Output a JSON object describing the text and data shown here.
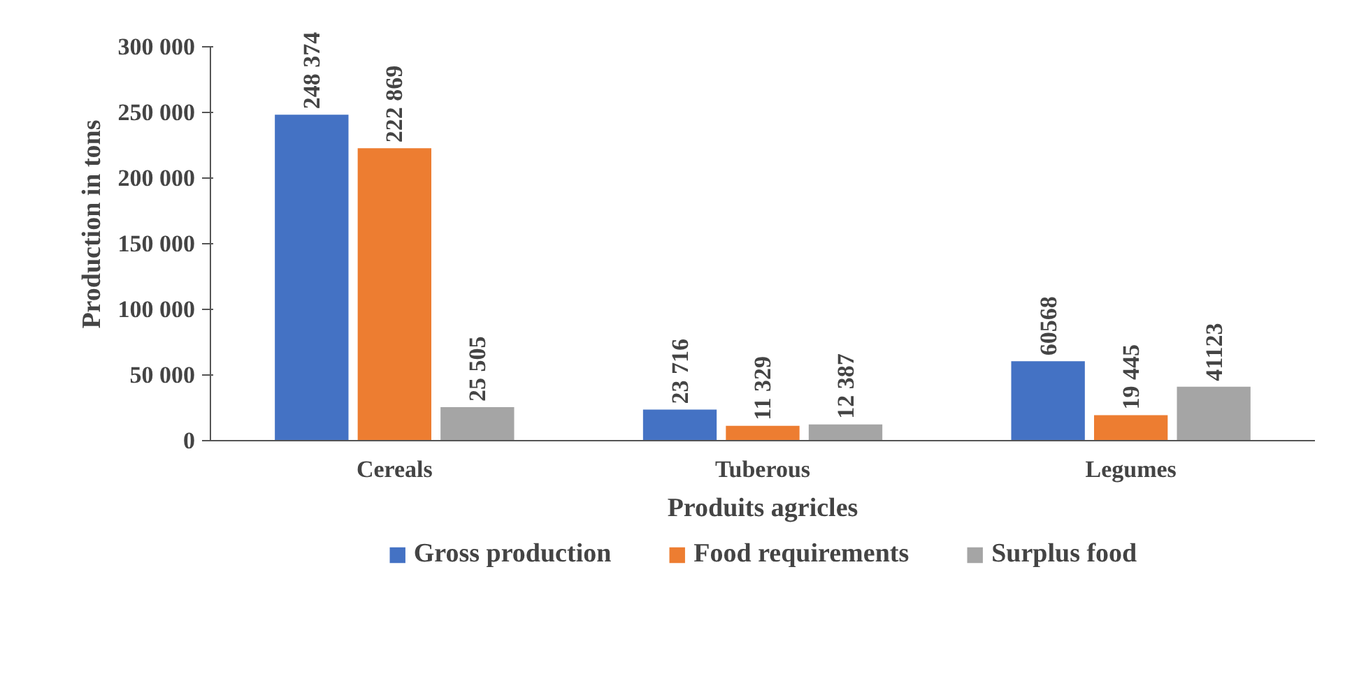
{
  "chart_data": {
    "type": "bar",
    "xlabel": "Produits agricles",
    "ylabel": "Production in tons",
    "categories": [
      "Cereals",
      "Tuberous",
      "Legumes"
    ],
    "series": [
      {
        "name": "Gross production",
        "color": "#4472c4",
        "values": [
          248374,
          23716,
          60568
        ],
        "value_labels": [
          "248 374",
          "23 716",
          "60568"
        ]
      },
      {
        "name": "Food requirements",
        "color": "#ed7d31",
        "values": [
          222869,
          11329,
          19445
        ],
        "value_labels": [
          "222 869",
          "11 329",
          "19 445"
        ]
      },
      {
        "name": "Surplus food",
        "color": "#a5a5a5",
        "values": [
          25505,
          12387,
          41123
        ],
        "value_labels": [
          "25 505",
          "12 387",
          "41123"
        ]
      }
    ],
    "ylim": [
      0,
      300000
    ],
    "yticks": [
      {
        "value": 0,
        "label": "0"
      },
      {
        "value": 50000,
        "label": "50 000"
      },
      {
        "value": 100000,
        "label": "100 000"
      },
      {
        "value": 150000,
        "label": "150 000"
      },
      {
        "value": 200000,
        "label": "200 000"
      },
      {
        "value": 250000,
        "label": "250 000"
      },
      {
        "value": 300000,
        "label": "300 000"
      }
    ],
    "grid": false,
    "legend": "bottom"
  }
}
